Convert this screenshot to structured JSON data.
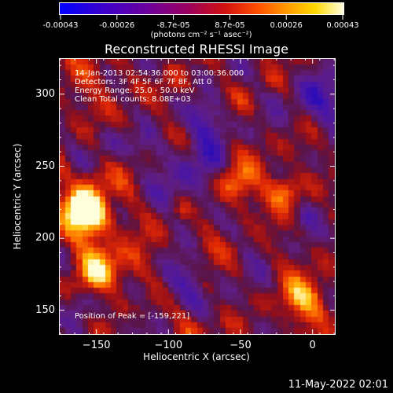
{
  "colorbar": {
    "tick_labels": [
      "-0.00043",
      "-0.00026",
      "-8.7e-05",
      "8.7e-05",
      "0.00026",
      "0.00043"
    ],
    "unit_label": "(photons cm⁻² s⁻¹ asec⁻²)",
    "colors": [
      "#0000ff",
      "#ffffff",
      "#ffff00"
    ]
  },
  "title": "Reconstructed RHESSI Image",
  "info_lines": [
    "14-Jan-2013 02:54:36.000 to 03:00:36.000",
    "Detectors: 3F 4F 5F 6F 7F 8F, Att 0",
    "Energy Range: 25.0 - 50.0 keV",
    "Clean     Total counts: 8.08E+03"
  ],
  "peak_text": "Position of Peak = [-159,221]",
  "timestamp": "11-May-2022 02:01",
  "chart_data": {
    "type": "heatmap",
    "title": "Reconstructed RHESSI Image",
    "xlabel": "Heliocentric X (arcsec)",
    "ylabel": "Heliocentric Y (arcsec)",
    "xlim": [
      -176,
      16
    ],
    "ylim": [
      133,
      325
    ],
    "x_ticks": [
      -150,
      -100,
      -50,
      0
    ],
    "y_ticks": [
      150,
      200,
      250,
      300
    ],
    "x_tick_labels": [
      "−150",
      "−100",
      "−50",
      "0"
    ],
    "y_tick_labels": [
      "150",
      "200",
      "250",
      "300"
    ],
    "value_range": [
      -0.00043,
      0.00043
    ],
    "colormap": "blue-purple-red-orange-yellow-white",
    "peak_position": [
      -159,
      221
    ]
  }
}
